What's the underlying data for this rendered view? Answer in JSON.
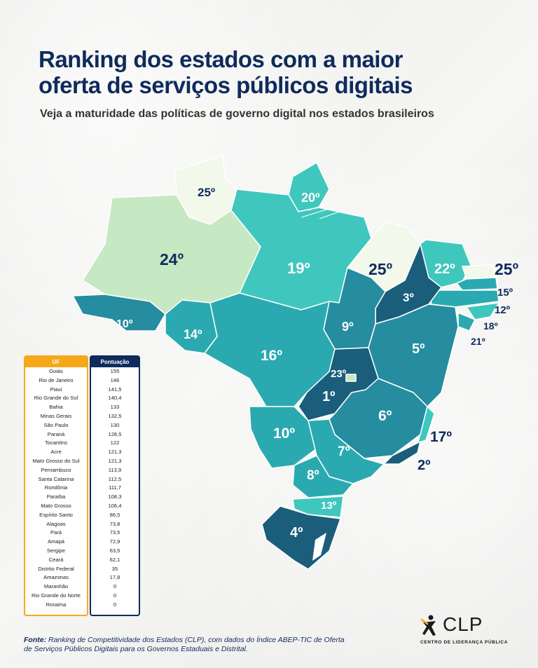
{
  "title_line1": "Ranking dos estados com a maior",
  "title_line2": "oferta de serviços públicos digitais",
  "subtitle": "Veja a maturidade das políticas de governo digital nos estados brasileiros",
  "colors": {
    "title": "#0f2b5c",
    "table_uf_border": "#f6a81a",
    "table_score_border": "#0f2b5c",
    "scale": [
      "#1a5e7c",
      "#268c9f",
      "#2aaab0",
      "#3fc7bd",
      "#c6e8c3",
      "#f2f8ea"
    ]
  },
  "map_labels": {
    "RR": "25º",
    "AP": "20º",
    "AM": "24º",
    "PA": "19º",
    "MA": "25º",
    "CE": "22º",
    "RN": "25º",
    "PB": "15º",
    "PE": "12º",
    "AL": "18º",
    "SE": "21º",
    "PI": "3º",
    "TO": "9º",
    "BA": "5º",
    "AC": "10º",
    "RO": "14º",
    "MT": "16º",
    "DF": "23º",
    "GO": "1º",
    "MS": "10º",
    "MG": "6º",
    "ES": "17º",
    "RJ": "2º",
    "SP": "7º",
    "PR": "8º",
    "SC": "13º",
    "RS": "4º"
  },
  "table": {
    "header_uf": "UF",
    "header_score": "Pontuação",
    "rows": [
      {
        "uf": "Goiás",
        "score": "155"
      },
      {
        "uf": "Rio de Janeiro",
        "score": "146"
      },
      {
        "uf": "Piauí",
        "score": "141,5"
      },
      {
        "uf": "Rio Grande do Sul",
        "score": "140,4"
      },
      {
        "uf": "Bahia",
        "score": "133"
      },
      {
        "uf": "Minas Gerais",
        "score": "132,5"
      },
      {
        "uf": "São Paulo",
        "score": "130"
      },
      {
        "uf": "Paraná",
        "score": "128,5"
      },
      {
        "uf": "Tocantins",
        "score": "122"
      },
      {
        "uf": "Acre",
        "score": "121,3"
      },
      {
        "uf": "Mato Grosso do Sul",
        "score": "121,3"
      },
      {
        "uf": "Pernambuco",
        "score": "113,9"
      },
      {
        "uf": "Santa Catarina",
        "score": "112,5"
      },
      {
        "uf": "Rondônia",
        "score": "111,7"
      },
      {
        "uf": "Paraíba",
        "score": "108,3"
      },
      {
        "uf": "Mato Grosso",
        "score": "106,4"
      },
      {
        "uf": "Espírito Santo",
        "score": "86,5"
      },
      {
        "uf": "Alagoas",
        "score": "73,8"
      },
      {
        "uf": "Pará",
        "score": "73,5"
      },
      {
        "uf": "Amapá",
        "score": "72,9"
      },
      {
        "uf": "Sergipe",
        "score": "63,5"
      },
      {
        "uf": "Ceará",
        "score": "62,1"
      },
      {
        "uf": "Distrito Federal",
        "score": "35"
      },
      {
        "uf": "Amazonas",
        "score": "17,8"
      },
      {
        "uf": "Maranhão",
        "score": "0"
      },
      {
        "uf": "Rio Grande do Norte",
        "score": "0"
      },
      {
        "uf": "Roraima",
        "score": "0"
      }
    ]
  },
  "footnote_bold": "Fonte:",
  "footnote_text": "Ranking de Competitividade dos Estados (CLP), com dados do Índice ABEP-TIC de Oferta de Serviços Públicos Digitais para os Governos Estaduais e Distrital.",
  "logo_text": "CLP",
  "logo_subtext": "CENTRO DE LIDERANÇA PÚBLICA"
}
